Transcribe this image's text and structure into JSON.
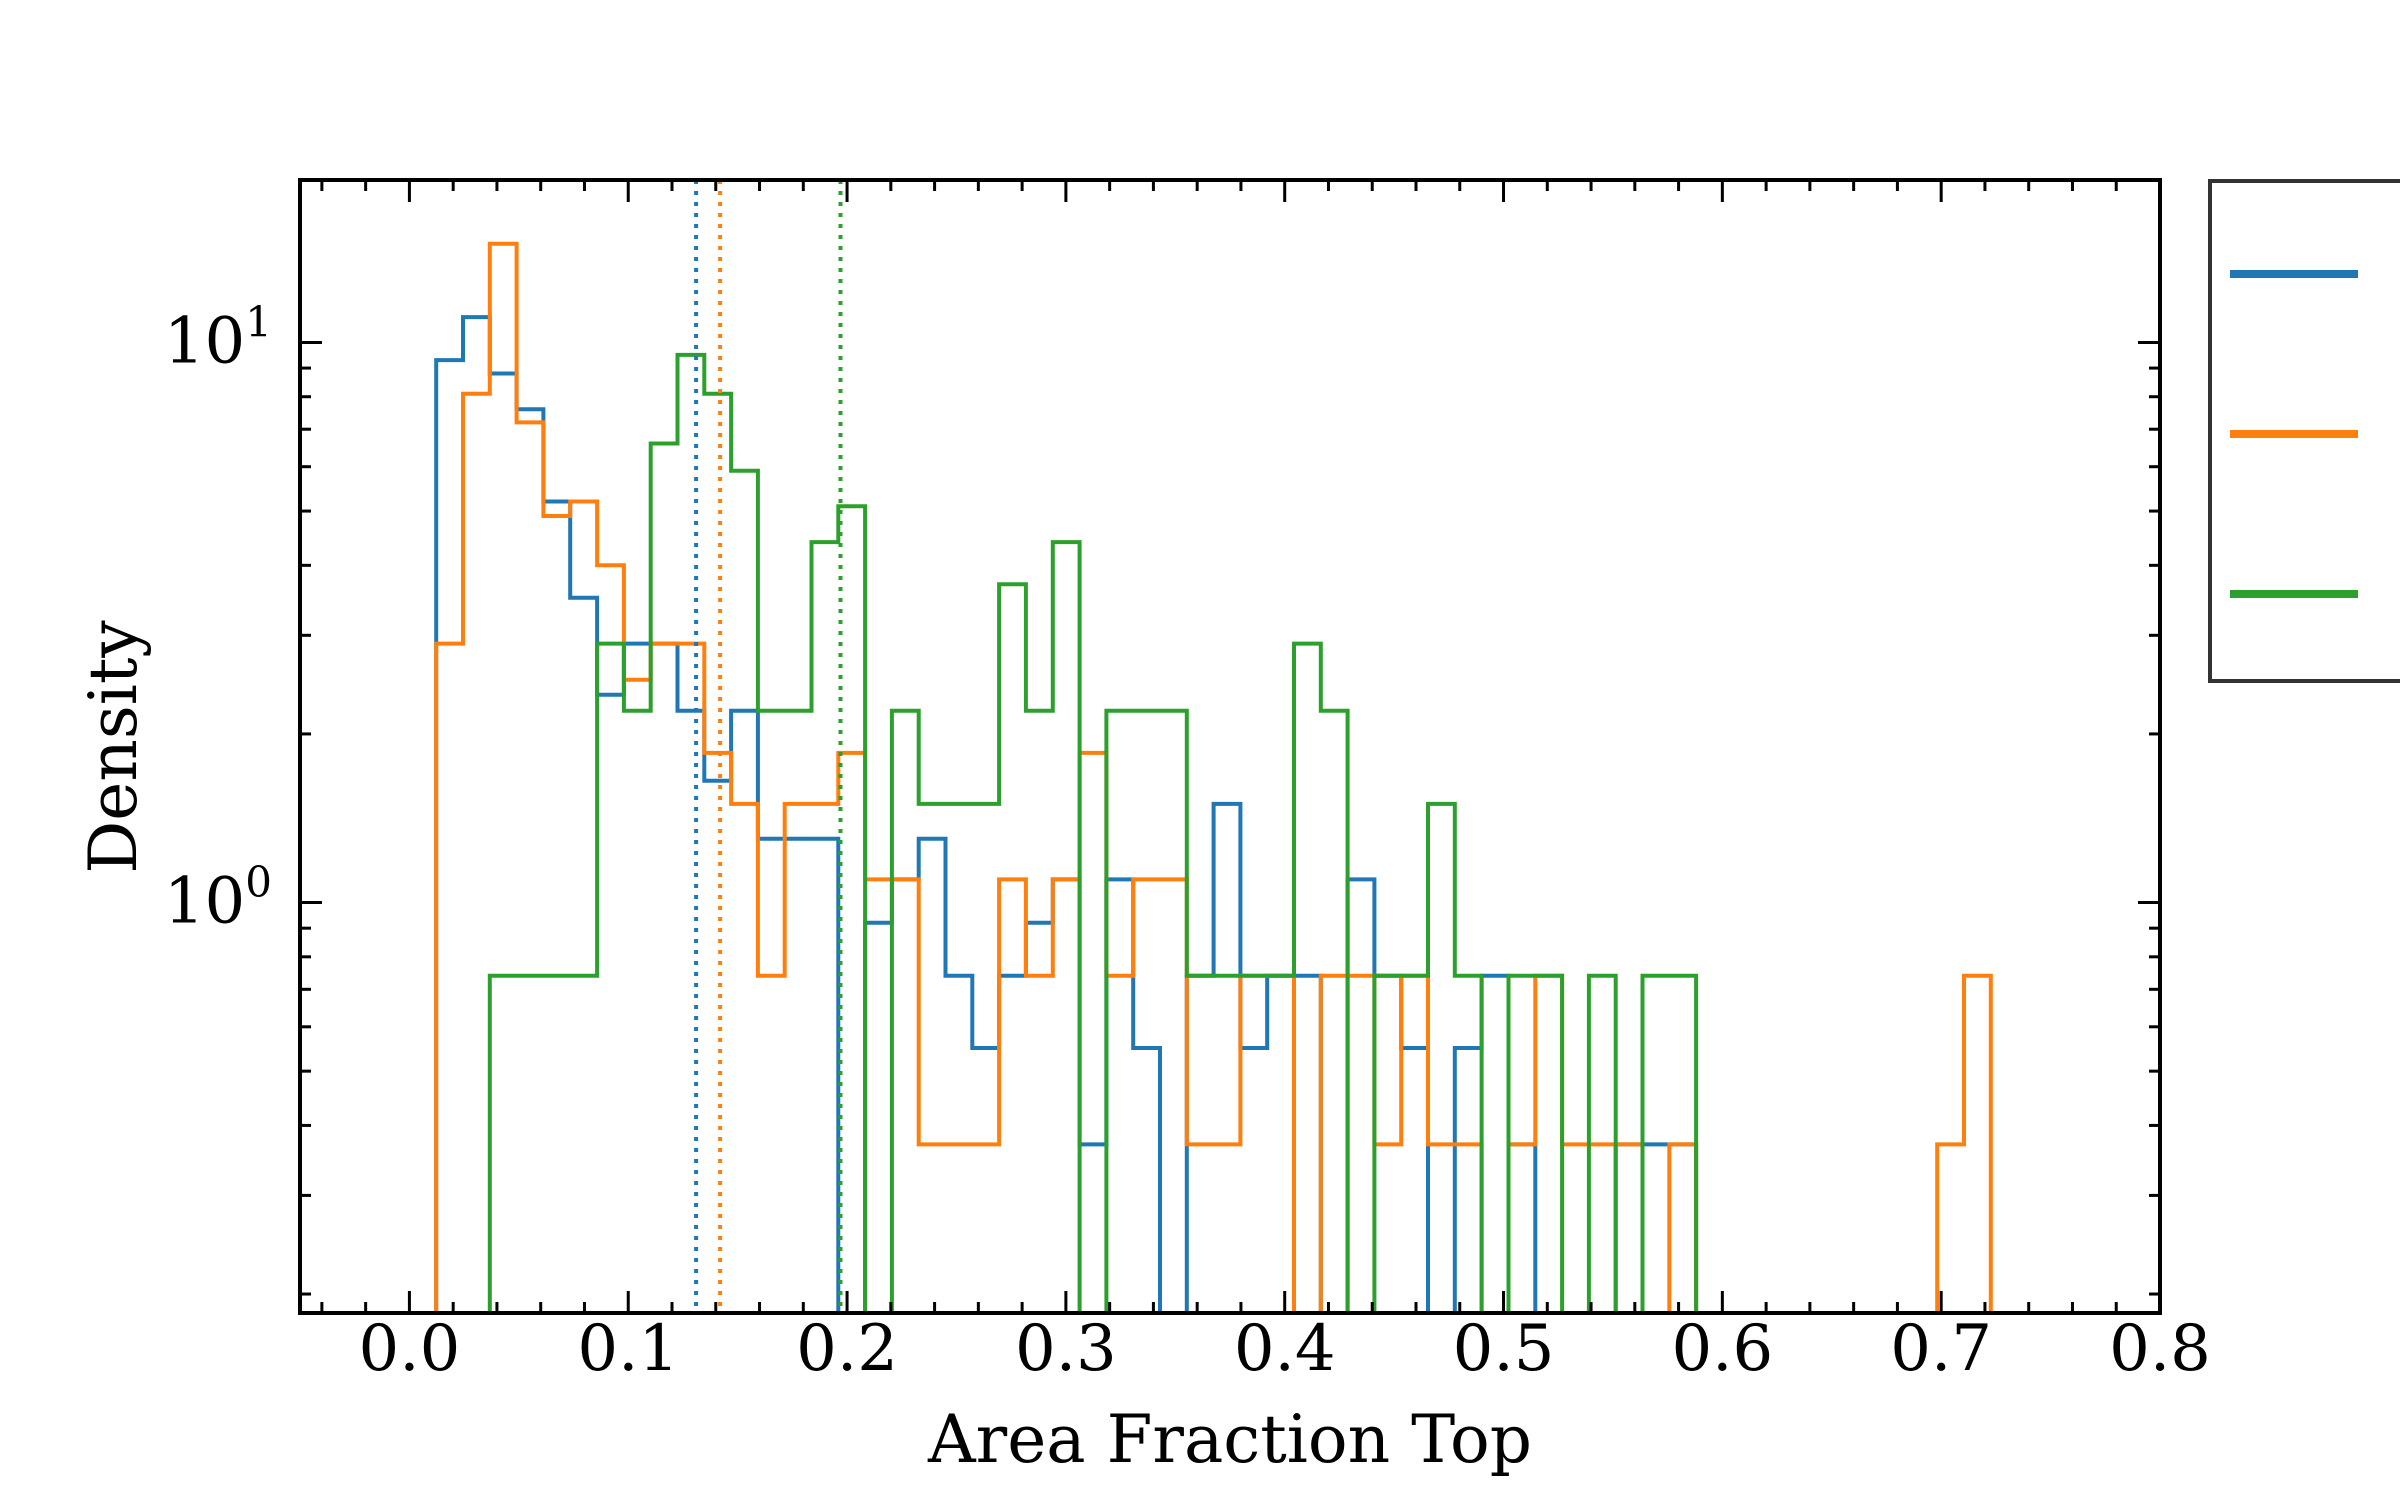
{
  "chart_data": {
    "type": "step-histogram",
    "title": "",
    "xlabel": "Area Fraction Top",
    "ylabel": "Density",
    "xlim": [
      -0.05,
      0.8
    ],
    "ylim": [
      0.185,
      19.5
    ],
    "yscale": "log",
    "xticks": [
      "0.0",
      "0.1",
      "0.2",
      "0.3",
      "0.4",
      "0.5",
      "0.6",
      "0.7",
      "0.8"
    ],
    "yticks": [
      {
        "base": "10",
        "exp": "0",
        "value": 1
      },
      {
        "base": "10",
        "exp": "1",
        "value": 10
      }
    ],
    "grid": false,
    "legend": {
      "placement": "right, outside axes",
      "entries": 3
    },
    "bin_width": 0.01225,
    "series": [
      {
        "color": "#1f77b4",
        "mean": 0.131,
        "bins": [
          [
            0.0,
            0.01225,
            0.18
          ],
          [
            0.01225,
            0.0245,
            9.3
          ],
          [
            0.0245,
            0.03675,
            11.1
          ],
          [
            0.03675,
            0.049,
            8.8
          ],
          [
            0.049,
            0.06125,
            7.6
          ],
          [
            0.06125,
            0.0735,
            5.2
          ],
          [
            0.0735,
            0.08575,
            3.5
          ],
          [
            0.08575,
            0.098,
            2.35
          ],
          [
            0.098,
            0.11025,
            2.9
          ],
          [
            0.11025,
            0.1225,
            2.9
          ],
          [
            0.1225,
            0.13475,
            2.2
          ],
          [
            0.13475,
            0.147,
            1.65
          ],
          [
            0.147,
            0.15925,
            2.2
          ],
          [
            0.15925,
            0.1715,
            1.3
          ],
          [
            0.1715,
            0.18375,
            1.3
          ],
          [
            0.18375,
            0.196,
            1.3
          ],
          [
            0.196,
            0.20825,
            0.0
          ],
          [
            0.20825,
            0.2205,
            0.92
          ],
          [
            0.2205,
            0.23275,
            1.1
          ],
          [
            0.23275,
            0.245,
            1.3
          ],
          [
            0.245,
            0.25725,
            0.74
          ],
          [
            0.25725,
            0.2695,
            0.55
          ],
          [
            0.2695,
            0.28175,
            0.74
          ],
          [
            0.28175,
            0.294,
            0.92
          ],
          [
            0.294,
            0.30625,
            1.1
          ],
          [
            0.30625,
            0.3185,
            0.37
          ],
          [
            0.3185,
            0.33075,
            1.1
          ],
          [
            0.33075,
            0.343,
            0.55
          ],
          [
            0.343,
            0.35525,
            0.18
          ],
          [
            0.35525,
            0.3675,
            0.74
          ],
          [
            0.3675,
            0.37975,
            1.5
          ],
          [
            0.37975,
            0.392,
            0.55
          ],
          [
            0.392,
            0.40425,
            0.74
          ],
          [
            0.40425,
            0.4165,
            0.74
          ],
          [
            0.4165,
            0.42875,
            0.18
          ],
          [
            0.42875,
            0.441,
            1.1
          ],
          [
            0.441,
            0.45325,
            0.74
          ],
          [
            0.45325,
            0.4655,
            0.55
          ],
          [
            0.4655,
            0.47775,
            0.18
          ],
          [
            0.47775,
            0.49,
            0.55
          ],
          [
            0.49,
            0.50225,
            0.74
          ],
          [
            0.50225,
            0.5145,
            0.37
          ],
          [
            0.5145,
            0.52675,
            0.0
          ],
          [
            0.52675,
            0.539,
            0.0
          ],
          [
            0.539,
            0.55125,
            0.0
          ],
          [
            0.55125,
            0.5635,
            0.37
          ],
          [
            0.5635,
            0.57575,
            0.37
          ],
          [
            0.57575,
            0.588,
            0.37
          ],
          [
            0.588,
            0.60025,
            0.18
          ],
          [
            0.60025,
            0.6125,
            0.0
          ],
          [
            0.6125,
            0.62475,
            0.18
          ],
          [
            0.62475,
            0.637,
            0.18
          ],
          [
            0.637,
            0.7105,
            0.0
          ],
          [
            0.7105,
            0.72275,
            0.18
          ]
        ]
      },
      {
        "color": "#ff7f0e",
        "mean": 0.142,
        "bins": [
          [
            0.01225,
            0.0245,
            2.9
          ],
          [
            0.0245,
            0.03675,
            8.1
          ],
          [
            0.03675,
            0.049,
            15.0
          ],
          [
            0.049,
            0.06125,
            7.2
          ],
          [
            0.06125,
            0.0735,
            4.9
          ],
          [
            0.0735,
            0.08575,
            5.2
          ],
          [
            0.08575,
            0.098,
            4.0
          ],
          [
            0.098,
            0.11025,
            2.5
          ],
          [
            0.11025,
            0.1225,
            2.9
          ],
          [
            0.1225,
            0.13475,
            2.9
          ],
          [
            0.13475,
            0.147,
            1.85
          ],
          [
            0.147,
            0.15925,
            1.5
          ],
          [
            0.15925,
            0.1715,
            0.74
          ],
          [
            0.1715,
            0.18375,
            1.5
          ],
          [
            0.18375,
            0.196,
            1.5
          ],
          [
            0.196,
            0.20825,
            1.85
          ],
          [
            0.20825,
            0.2205,
            1.1
          ],
          [
            0.2205,
            0.23275,
            1.1
          ],
          [
            0.23275,
            0.245,
            0.37
          ],
          [
            0.245,
            0.25725,
            0.37
          ],
          [
            0.25725,
            0.2695,
            0.37
          ],
          [
            0.2695,
            0.28175,
            1.1
          ],
          [
            0.28175,
            0.294,
            0.74
          ],
          [
            0.294,
            0.30625,
            1.1
          ],
          [
            0.30625,
            0.3185,
            1.85
          ],
          [
            0.3185,
            0.33075,
            0.74
          ],
          [
            0.33075,
            0.343,
            1.1
          ],
          [
            0.343,
            0.35525,
            1.1
          ],
          [
            0.35525,
            0.3675,
            0.37
          ],
          [
            0.3675,
            0.37975,
            0.37
          ],
          [
            0.37975,
            0.392,
            0.74
          ],
          [
            0.392,
            0.40425,
            0.74
          ],
          [
            0.40425,
            0.4165,
            0.0
          ],
          [
            0.4165,
            0.42875,
            0.74
          ],
          [
            0.42875,
            0.441,
            0.74
          ],
          [
            0.441,
            0.45325,
            0.37
          ],
          [
            0.45325,
            0.4655,
            0.74
          ],
          [
            0.4655,
            0.47775,
            0.37
          ],
          [
            0.47775,
            0.49,
            0.37
          ],
          [
            0.49,
            0.50225,
            0.0
          ],
          [
            0.50225,
            0.5145,
            0.37
          ],
          [
            0.5145,
            0.52675,
            0.74
          ],
          [
            0.52675,
            0.539,
            0.37
          ],
          [
            0.539,
            0.55125,
            0.37
          ],
          [
            0.55125,
            0.5635,
            0.37
          ],
          [
            0.5635,
            0.57575,
            0.0
          ],
          [
            0.57575,
            0.588,
            0.37
          ],
          [
            0.588,
            0.6982,
            0.0
          ],
          [
            0.6982,
            0.71045,
            0.37
          ],
          [
            0.71045,
            0.7227,
            0.74
          ]
        ]
      },
      {
        "color": "#2ca02c",
        "mean": 0.197,
        "bins": [
          [
            0.03675,
            0.049,
            0.74
          ],
          [
            0.049,
            0.06125,
            0.74
          ],
          [
            0.06125,
            0.0735,
            0.74
          ],
          [
            0.0735,
            0.08575,
            0.74
          ],
          [
            0.08575,
            0.098,
            2.9
          ],
          [
            0.098,
            0.11025,
            2.2
          ],
          [
            0.11025,
            0.1225,
            6.6
          ],
          [
            0.1225,
            0.13475,
            9.5
          ],
          [
            0.13475,
            0.147,
            8.1
          ],
          [
            0.147,
            0.15925,
            5.9
          ],
          [
            0.15925,
            0.1715,
            2.2
          ],
          [
            0.1715,
            0.18375,
            2.2
          ],
          [
            0.18375,
            0.196,
            4.4
          ],
          [
            0.196,
            0.20825,
            5.1
          ],
          [
            0.20825,
            0.2205,
            0.0
          ],
          [
            0.2205,
            0.23275,
            2.2
          ],
          [
            0.23275,
            0.245,
            1.5
          ],
          [
            0.245,
            0.25725,
            1.5
          ],
          [
            0.25725,
            0.2695,
            1.5
          ],
          [
            0.2695,
            0.28175,
            3.7
          ],
          [
            0.28175,
            0.294,
            2.2
          ],
          [
            0.294,
            0.30625,
            4.4
          ],
          [
            0.30625,
            0.3185,
            0.0
          ],
          [
            0.3185,
            0.33075,
            2.2
          ],
          [
            0.33075,
            0.343,
            2.2
          ],
          [
            0.343,
            0.35525,
            2.2
          ],
          [
            0.35525,
            0.3675,
            0.74
          ],
          [
            0.3675,
            0.37975,
            0.74
          ],
          [
            0.37975,
            0.392,
            0.74
          ],
          [
            0.392,
            0.40425,
            0.74
          ],
          [
            0.40425,
            0.4165,
            2.9
          ],
          [
            0.4165,
            0.42875,
            2.2
          ],
          [
            0.42875,
            0.441,
            0.0
          ],
          [
            0.441,
            0.45325,
            0.74
          ],
          [
            0.45325,
            0.4655,
            0.74
          ],
          [
            0.4655,
            0.47775,
            1.5
          ],
          [
            0.47775,
            0.49,
            0.74
          ],
          [
            0.49,
            0.50225,
            0.0
          ],
          [
            0.50225,
            0.5145,
            0.74
          ],
          [
            0.5145,
            0.52675,
            0.74
          ],
          [
            0.52675,
            0.539,
            0.0
          ],
          [
            0.539,
            0.55125,
            0.74
          ],
          [
            0.55125,
            0.5635,
            0.0
          ],
          [
            0.5635,
            0.57575,
            0.74
          ],
          [
            0.57575,
            0.588,
            0.74
          ]
        ]
      }
    ]
  }
}
